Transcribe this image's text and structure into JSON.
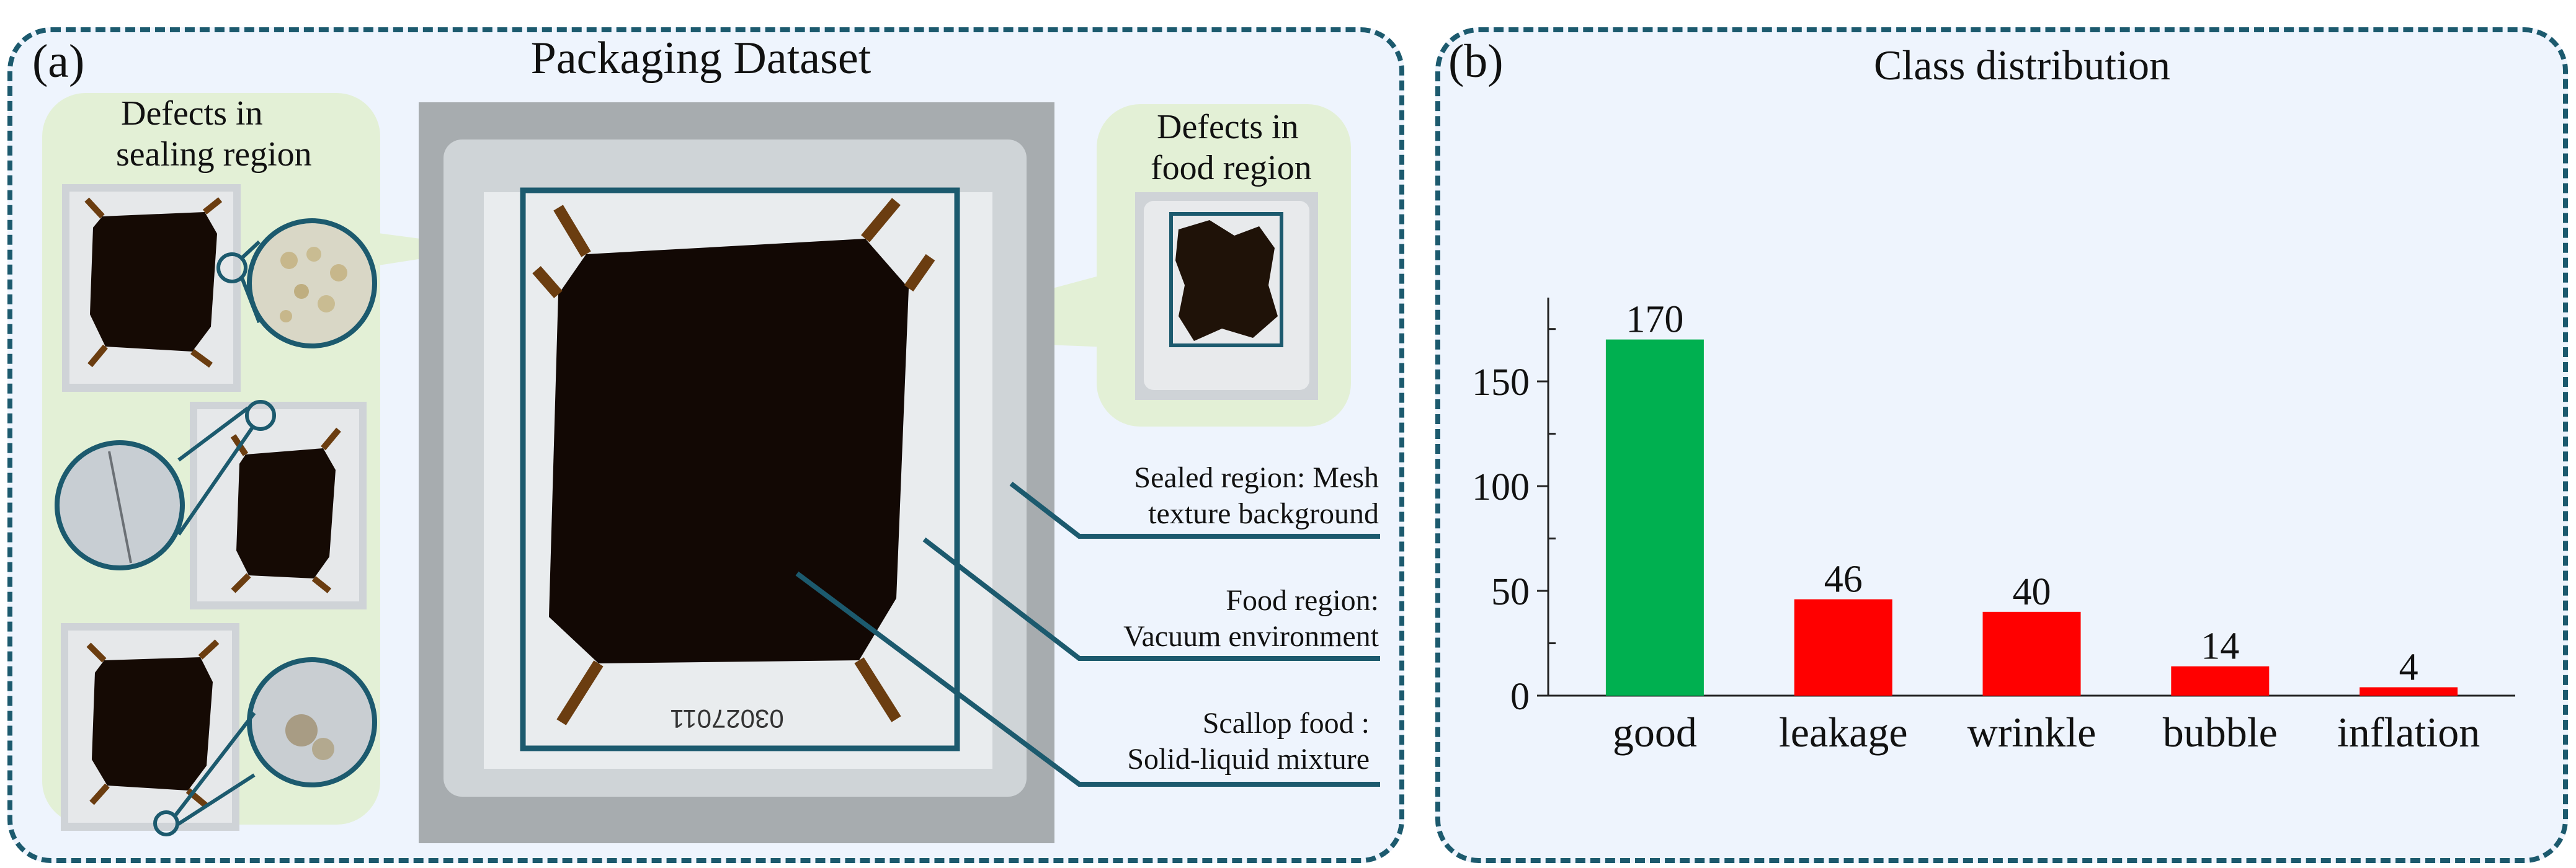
{
  "panel_a": {
    "label": "(a)",
    "title": "Packaging Dataset",
    "sealing_group": {
      "title_line1": "Defects in",
      "title_line2": "sealing region"
    },
    "food_group": {
      "title_line1": "Defects in",
      "title_line2": "food region"
    },
    "package_code": "03027011",
    "callouts": [
      {
        "line1": "Sealed region: Mesh",
        "line2": "texture background"
      },
      {
        "line1": "Food region:",
        "line2": "Vacuum environment"
      },
      {
        "line1": "Scallop food :",
        "line2": "Solid-liquid mixture"
      }
    ],
    "colors": {
      "frame": "#1c5a6e",
      "group_fill": "#e3f0d6",
      "panel_fill": "#eef4fd"
    }
  },
  "panel_b": {
    "label": "(b)",
    "title": "Class distribution"
  },
  "chart_data": {
    "type": "bar",
    "title": "Class distribution",
    "categories": [
      "good",
      "leakage",
      "wrinkle",
      "bubble",
      "inflation"
    ],
    "values": [
      170,
      46,
      40,
      14,
      4
    ],
    "data_labels": [
      "170",
      "46",
      "40",
      "14",
      "4"
    ],
    "colors": [
      "#00b050",
      "#ff0000",
      "#ff0000",
      "#ff0000",
      "#ff0000"
    ],
    "yticks": [
      0,
      50,
      100,
      150
    ],
    "ytick_labels": [
      "0",
      "50",
      "100",
      "150"
    ],
    "ylim": [
      0,
      190
    ],
    "xlabel": "",
    "ylabel": "",
    "grid": false
  }
}
